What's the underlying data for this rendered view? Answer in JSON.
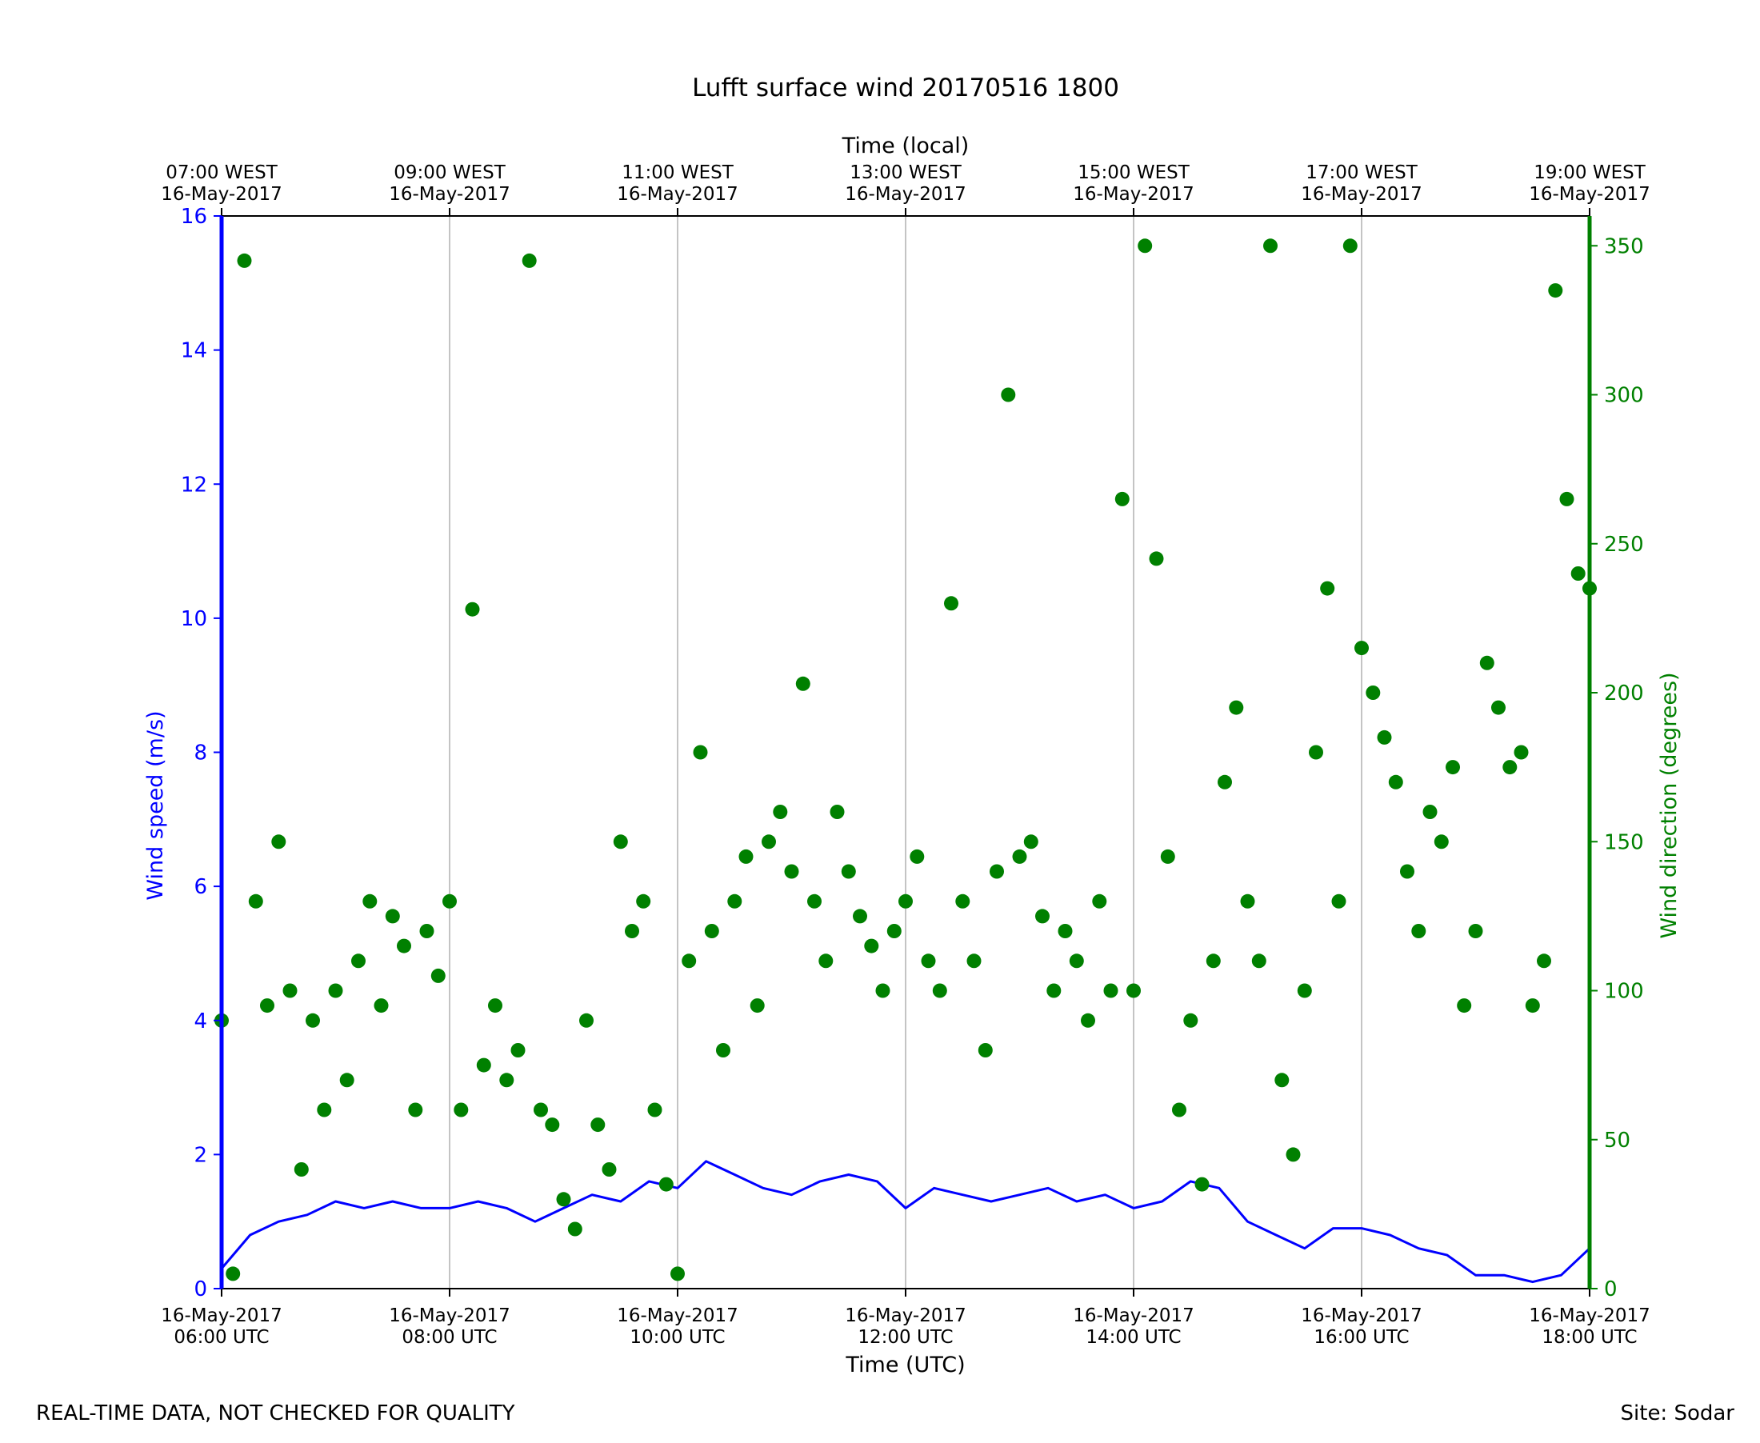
{
  "chart_data": {
    "type": "line+scatter",
    "title": "Lufft surface wind 20170516 1800",
    "xlabel": "Time (UTC)",
    "top_xlabel": "Time (local)",
    "ylabel_left": "Wind speed (m/s)",
    "ylabel_right": "Wind direction (degrees)",
    "x_range_hours_utc": [
      6,
      18
    ],
    "ylim_left": [
      0,
      16
    ],
    "ylim_right": [
      0,
      360
    ],
    "left_ticks": [
      "0",
      "2",
      "4",
      "6",
      "8",
      "10",
      "12",
      "14",
      "16"
    ],
    "right_ticks": [
      "0",
      "50",
      "100",
      "150",
      "200",
      "250",
      "300",
      "350"
    ],
    "bottom_ticks": [
      {
        "line1": "16-May-2017",
        "line2": "06:00 UTC"
      },
      {
        "line1": "16-May-2017",
        "line2": "08:00 UTC"
      },
      {
        "line1": "16-May-2017",
        "line2": "10:00 UTC"
      },
      {
        "line1": "16-May-2017",
        "line2": "12:00 UTC"
      },
      {
        "line1": "16-May-2017",
        "line2": "14:00 UTC"
      },
      {
        "line1": "16-May-2017",
        "line2": "16:00 UTC"
      },
      {
        "line1": "16-May-2017",
        "line2": "18:00 UTC"
      }
    ],
    "top_ticks": [
      {
        "line1": "07:00 WEST",
        "line2": "16-May-2017"
      },
      {
        "line1": "09:00 WEST",
        "line2": "16-May-2017"
      },
      {
        "line1": "11:00 WEST",
        "line2": "16-May-2017"
      },
      {
        "line1": "13:00 WEST",
        "line2": "16-May-2017"
      },
      {
        "line1": "15:00 WEST",
        "line2": "16-May-2017"
      },
      {
        "line1": "17:00 WEST",
        "line2": "16-May-2017"
      },
      {
        "line1": "19:00 WEST",
        "line2": "16-May-2017"
      }
    ],
    "grid": "vertical lines at major x ticks",
    "series": [
      {
        "name": "Wind speed",
        "axis": "left",
        "style": "line",
        "color": "#0000ff",
        "x_hours_utc": [
          6.0,
          6.25,
          6.5,
          6.75,
          7.0,
          7.25,
          7.5,
          7.75,
          8.0,
          8.25,
          8.5,
          8.75,
          9.0,
          9.25,
          9.5,
          9.75,
          10.0,
          10.25,
          10.5,
          10.75,
          11.0,
          11.25,
          11.5,
          11.75,
          12.0,
          12.25,
          12.5,
          12.75,
          13.0,
          13.25,
          13.5,
          13.75,
          14.0,
          14.25,
          14.5,
          14.75,
          15.0,
          15.25,
          15.5,
          15.75,
          16.0,
          16.25,
          16.5,
          16.75,
          17.0,
          17.25,
          17.5,
          17.75,
          18.0
        ],
        "values": [
          0.3,
          0.8,
          1.0,
          1.1,
          1.3,
          1.2,
          1.3,
          1.2,
          1.2,
          1.3,
          1.2,
          1.0,
          1.2,
          1.4,
          1.3,
          1.6,
          1.5,
          1.9,
          1.7,
          1.5,
          1.4,
          1.6,
          1.7,
          1.6,
          1.2,
          1.5,
          1.4,
          1.3,
          1.4,
          1.5,
          1.3,
          1.4,
          1.2,
          1.3,
          1.6,
          1.5,
          1.0,
          0.8,
          0.6,
          0.9,
          0.9,
          0.8,
          0.6,
          0.5,
          0.2,
          0.2,
          0.1,
          0.2,
          0.6
        ]
      },
      {
        "name": "Wind direction",
        "axis": "right",
        "style": "scatter",
        "color": "#008000",
        "x_hours_utc": [
          6.0,
          6.1,
          6.2,
          6.3,
          6.4,
          6.5,
          6.6,
          6.7,
          6.8,
          6.9,
          7.0,
          7.1,
          7.2,
          7.3,
          7.4,
          7.5,
          7.6,
          7.7,
          7.8,
          7.9,
          8.0,
          8.1,
          8.2,
          8.3,
          8.4,
          8.5,
          8.6,
          8.7,
          8.8,
          8.9,
          9.0,
          9.1,
          9.2,
          9.3,
          9.4,
          9.5,
          9.6,
          9.7,
          9.8,
          9.9,
          10.0,
          10.1,
          10.2,
          10.3,
          10.4,
          10.5,
          10.6,
          10.7,
          10.8,
          10.9,
          11.0,
          11.1,
          11.2,
          11.3,
          11.4,
          11.5,
          11.6,
          11.7,
          11.8,
          11.9,
          12.0,
          12.1,
          12.2,
          12.3,
          12.4,
          12.5,
          12.6,
          12.7,
          12.8,
          12.9,
          13.0,
          13.1,
          13.2,
          13.3,
          13.4,
          13.5,
          13.6,
          13.7,
          13.8,
          13.9,
          14.0,
          14.1,
          14.2,
          14.3,
          14.4,
          14.5,
          14.6,
          14.7,
          14.8,
          14.9,
          15.0,
          15.1,
          15.2,
          15.3,
          15.4,
          15.5,
          15.6,
          15.7,
          15.8,
          15.9,
          16.0,
          16.1,
          16.2,
          16.3,
          16.4,
          16.5,
          16.6,
          16.7,
          16.8,
          16.9,
          17.0,
          17.1,
          17.2,
          17.3,
          17.4,
          17.5,
          17.6,
          17.7,
          17.8,
          17.9,
          18.0
        ],
        "values": [
          90,
          5,
          345,
          130,
          95,
          150,
          100,
          40,
          90,
          60,
          100,
          70,
          110,
          130,
          95,
          125,
          115,
          60,
          120,
          105,
          130,
          60,
          228,
          75,
          95,
          70,
          80,
          345,
          60,
          55,
          30,
          20,
          90,
          55,
          40,
          150,
          120,
          130,
          60,
          35,
          5,
          110,
          180,
          120,
          80,
          130,
          145,
          95,
          150,
          160,
          140,
          203,
          130,
          110,
          160,
          140,
          125,
          115,
          100,
          120,
          130,
          145,
          110,
          100,
          230,
          130,
          110,
          80,
          140,
          300,
          145,
          150,
          125,
          100,
          120,
          110,
          90,
          130,
          100,
          265,
          100,
          350,
          245,
          145,
          60,
          90,
          35,
          110,
          170,
          195,
          130,
          110,
          350,
          70,
          45,
          100,
          180,
          235,
          130,
          350,
          215,
          200,
          185,
          170,
          140,
          120,
          160,
          150,
          175,
          95,
          120,
          210,
          195,
          175,
          180,
          95,
          110,
          335,
          265,
          240,
          235
        ]
      }
    ]
  },
  "footer": {
    "left": "REAL-TIME DATA, NOT CHECKED FOR QUALITY",
    "right": "Site: Sodar"
  }
}
